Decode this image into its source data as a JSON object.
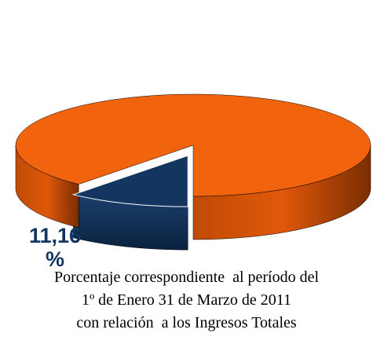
{
  "chart_data": {
    "type": "pie",
    "values": [
      11.16,
      88.84
    ],
    "value_labels": [
      "11,16 %",
      null
    ],
    "colors": [
      "#12365f",
      "#f2630d"
    ],
    "caption": [
      "Porcentaje correspondiente  al período del",
      "1º de Enero 31 de Marzo de 2011",
      "con relación  a los Ingresos Totales"
    ]
  }
}
